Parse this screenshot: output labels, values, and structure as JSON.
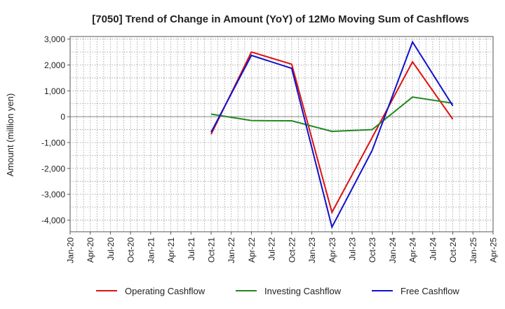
{
  "chart_data": {
    "type": "line",
    "title": "[7050]  Trend of Change in Amount (YoY) of 12Mo Moving Sum of Cashflows",
    "ylabel": "Amount (million yen)",
    "xlabel": "",
    "ylim": [
      -4450,
      3100
    ],
    "yticks": [
      3000,
      2000,
      1000,
      0,
      -1000,
      -2000,
      -3000,
      -4000
    ],
    "ytick_labels": [
      "3,000",
      "2,000",
      "1,000",
      "0",
      "-1,000",
      "-2,000",
      "-3,000",
      "-4,000"
    ],
    "categories": [
      "Jan-20",
      "Apr-20",
      "Jul-20",
      "Oct-20",
      "Jan-21",
      "Apr-21",
      "Jul-21",
      "Oct-21",
      "Jan-22",
      "Apr-22",
      "Jul-22",
      "Oct-22",
      "Jan-23",
      "Apr-23",
      "Jul-23",
      "Oct-23",
      "Jan-24",
      "Apr-24",
      "Jul-24",
      "Oct-24",
      "Jan-25",
      "Apr-25"
    ],
    "grid": true,
    "legend_position": "bottom",
    "series": [
      {
        "name": "Operating Cashflow",
        "color": "#dd1111",
        "points": [
          [
            "Oct-21",
            -680
          ],
          [
            "Apr-22",
            2500
          ],
          [
            "Oct-22",
            2030
          ],
          [
            "Apr-23",
            -3700
          ],
          [
            "Oct-23",
            -800
          ],
          [
            "Apr-24",
            2120
          ],
          [
            "Oct-24",
            -100
          ]
        ]
      },
      {
        "name": "Investing Cashflow",
        "color": "#228822",
        "points": [
          [
            "Oct-21",
            100
          ],
          [
            "Apr-22",
            -150
          ],
          [
            "Oct-22",
            -160
          ],
          [
            "Apr-23",
            -570
          ],
          [
            "Oct-23",
            -500
          ],
          [
            "Apr-24",
            760
          ],
          [
            "Oct-24",
            520
          ]
        ]
      },
      {
        "name": "Free Cashflow",
        "color": "#1111cc",
        "points": [
          [
            "Oct-21",
            -600
          ],
          [
            "Apr-22",
            2370
          ],
          [
            "Oct-22",
            1870
          ],
          [
            "Apr-23",
            -4270
          ],
          [
            "Oct-23",
            -1300
          ],
          [
            "Apr-24",
            2890
          ],
          [
            "Oct-24",
            420
          ]
        ]
      }
    ]
  }
}
